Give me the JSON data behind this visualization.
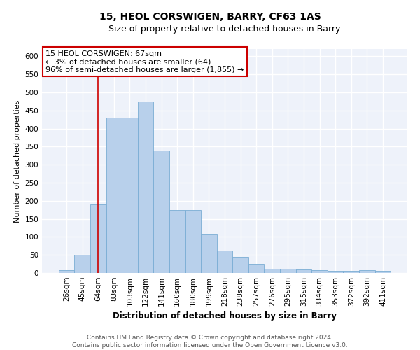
{
  "title": "15, HEOL CORSWIGEN, BARRY, CF63 1AS",
  "subtitle": "Size of property relative to detached houses in Barry",
  "xlabel": "Distribution of detached houses by size in Barry",
  "ylabel": "Number of detached properties",
  "categories": [
    "26sqm",
    "45sqm",
    "64sqm",
    "83sqm",
    "103sqm",
    "122sqm",
    "141sqm",
    "160sqm",
    "180sqm",
    "199sqm",
    "218sqm",
    "238sqm",
    "257sqm",
    "276sqm",
    "295sqm",
    "315sqm",
    "334sqm",
    "353sqm",
    "372sqm",
    "392sqm",
    "411sqm"
  ],
  "values": [
    7,
    50,
    190,
    430,
    430,
    475,
    340,
    175,
    175,
    108,
    62,
    45,
    25,
    12,
    12,
    9,
    7,
    5,
    5,
    7,
    5
  ],
  "bar_color": "#b8d0eb",
  "bar_edge_color": "#7aadd4",
  "vline_x_index": 2,
  "vline_color": "#cc0000",
  "annotation_text": "15 HEOL CORSWIGEN: 67sqm\n← 3% of detached houses are smaller (64)\n96% of semi-detached houses are larger (1,855) →",
  "annotation_box_color": "#ffffff",
  "annotation_box_edge_color": "#cc0000",
  "ylim": [
    0,
    620
  ],
  "yticks": [
    0,
    50,
    100,
    150,
    200,
    250,
    300,
    350,
    400,
    450,
    500,
    550,
    600
  ],
  "footer": "Contains HM Land Registry data © Crown copyright and database right 2024.\nContains public sector information licensed under the Open Government Licence v3.0.",
  "bg_color": "#eef2fa",
  "title_fontsize": 10,
  "subtitle_fontsize": 9,
  "xlabel_fontsize": 8.5,
  "ylabel_fontsize": 8,
  "tick_fontsize": 7.5,
  "annotation_fontsize": 8,
  "footer_fontsize": 6.5,
  "grid_color": "#ffffff",
  "grid_linewidth": 1.0
}
